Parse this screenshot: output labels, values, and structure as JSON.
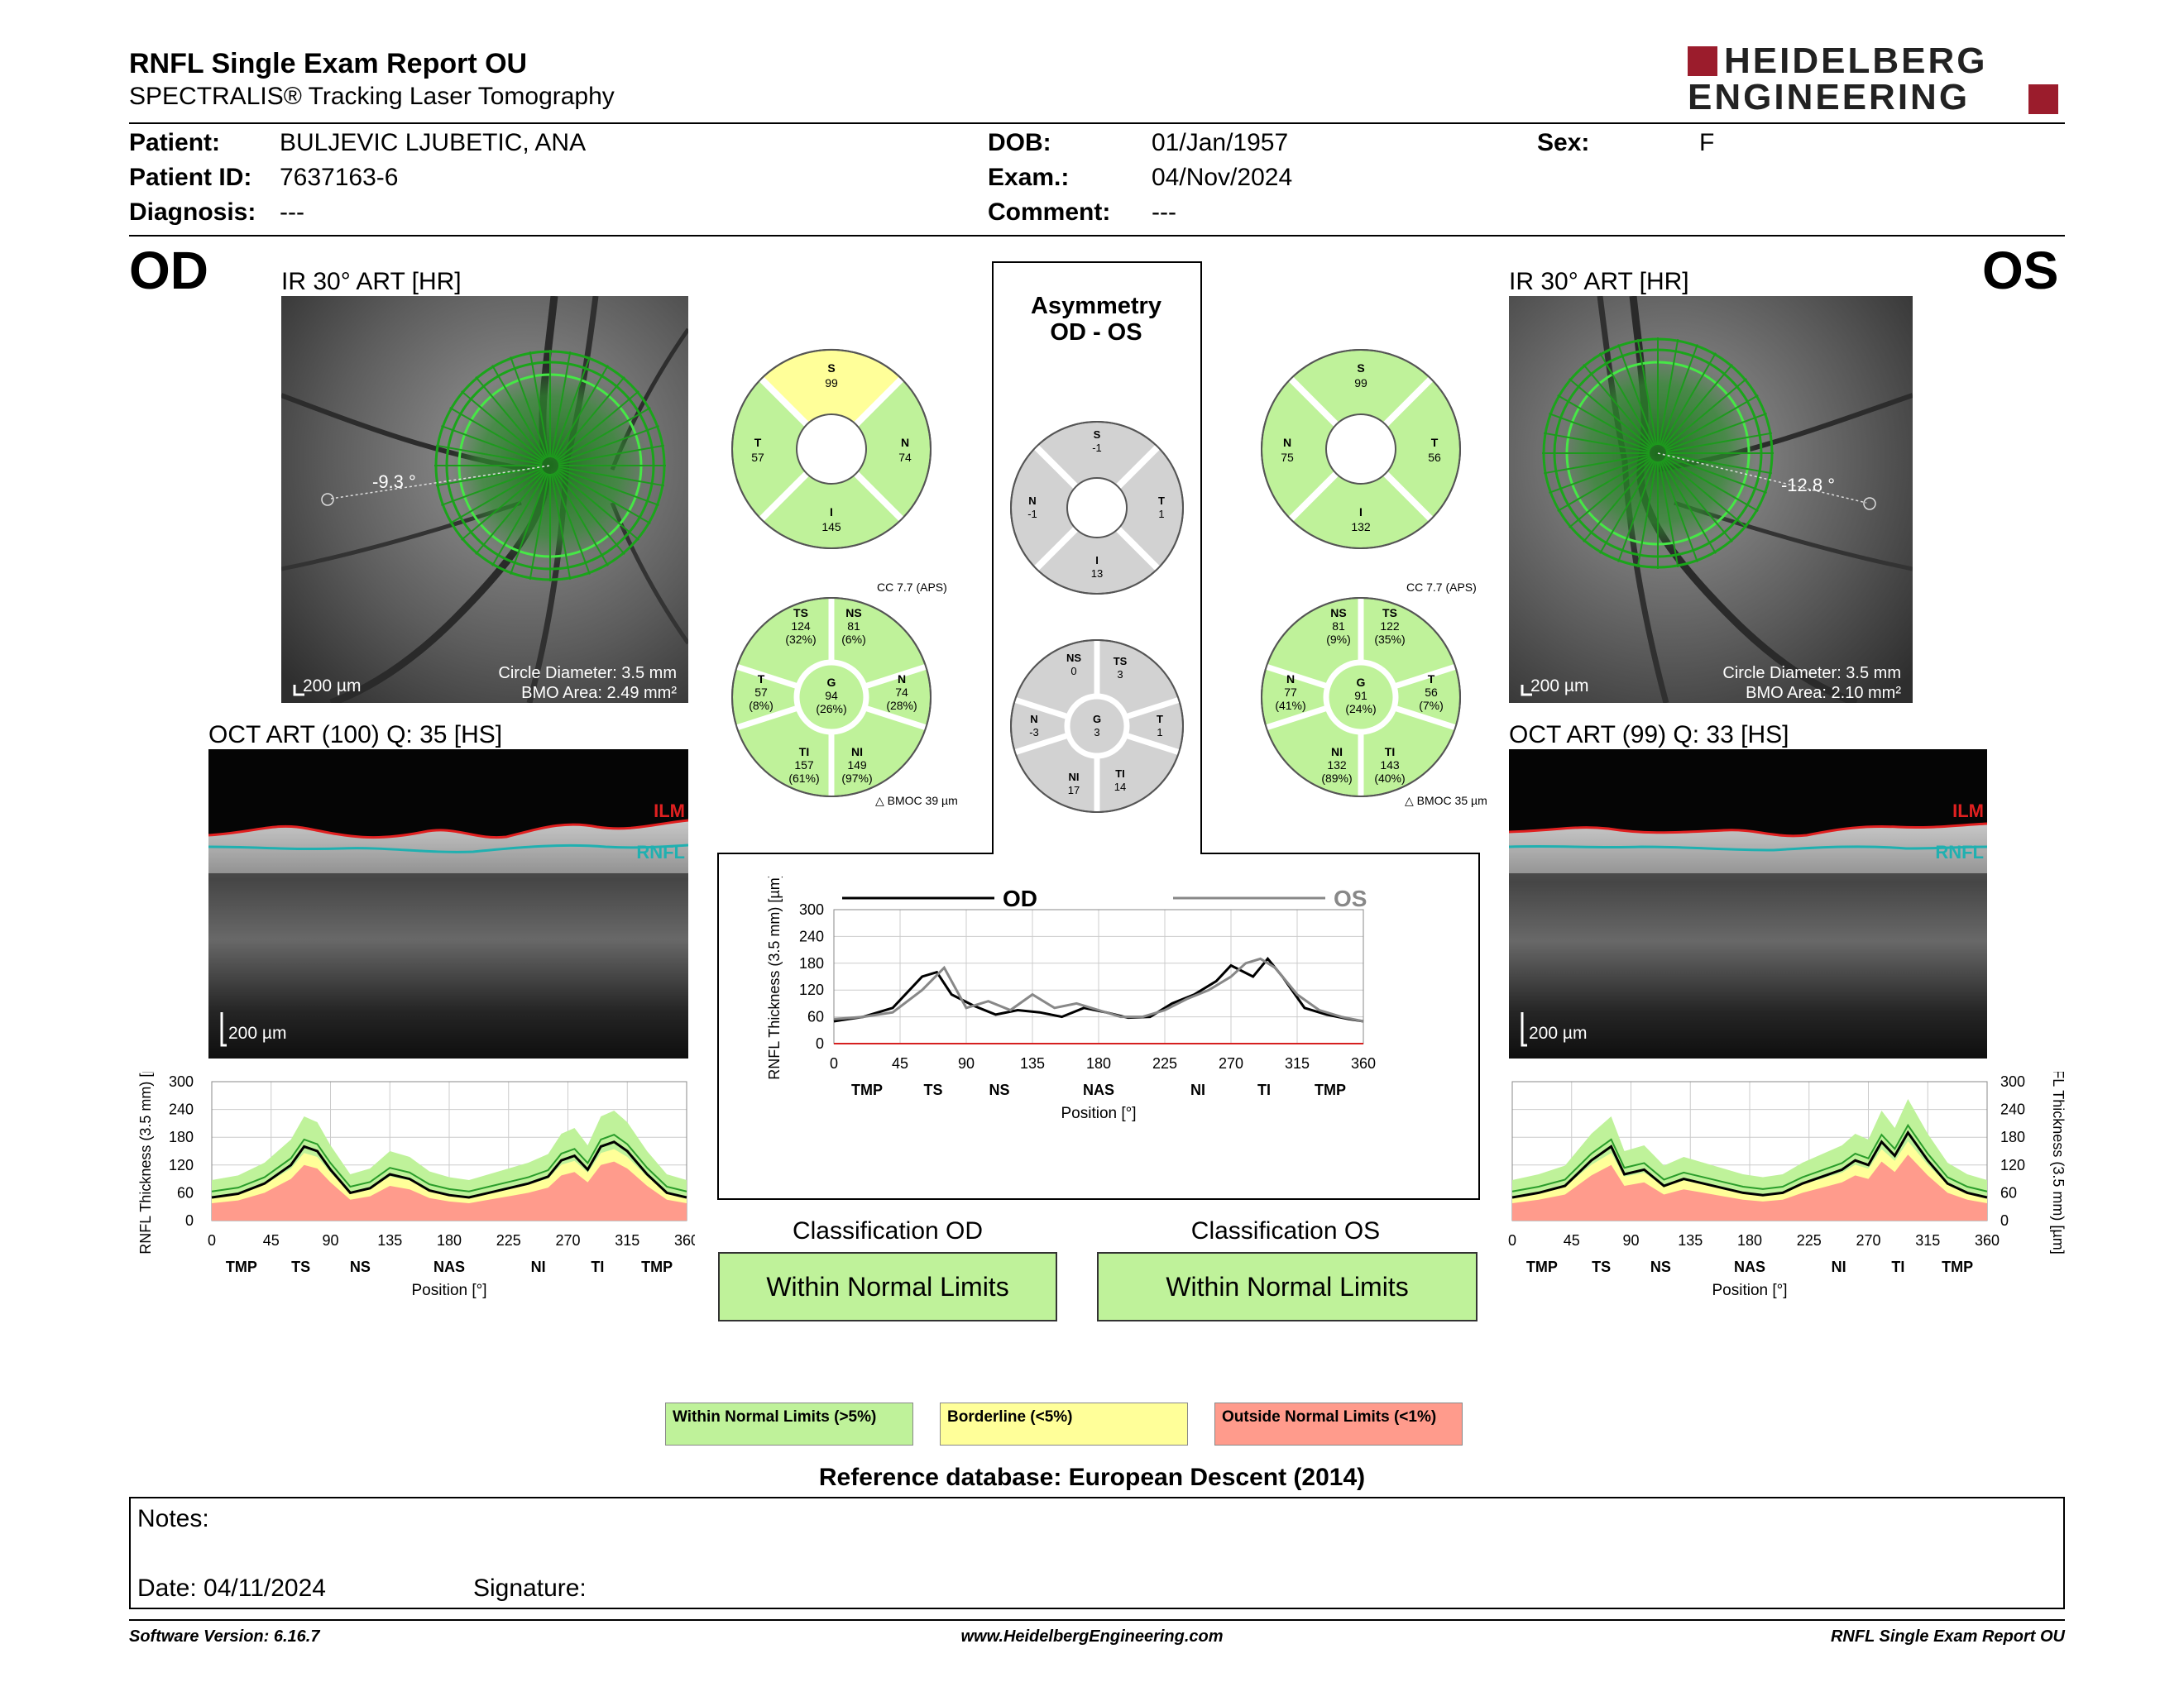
{
  "header": {
    "title": "RNFL Single Exam Report OU",
    "subtitle": "SPECTRALIS® Tracking Laser Tomography",
    "logo_top": "HEIDELBERG",
    "logo_bottom": "ENGINEERING"
  },
  "patient": {
    "patient_label": "Patient:",
    "patient_value": "BULJEVIC LJUBETIC, ANA",
    "id_label": "Patient ID:",
    "id_value": "7637163-6",
    "diagnosis_label": "Diagnosis:",
    "diagnosis_value": "---",
    "dob_label": "DOB:",
    "dob_value": "01/Jan/1957",
    "exam_label": "Exam.:",
    "exam_value": "04/Nov/2024",
    "comment_label": "Comment:",
    "comment_value": "---",
    "sex_label": "Sex:",
    "sex_value": "F"
  },
  "od": {
    "eye": "OD",
    "ir_caption": "IR 30° ART [HR]",
    "angle": "-9.3 °",
    "scale": "200 µm",
    "circle_diameter": "Circle Diameter: 3.5 mm",
    "bmo_area": "BMO Area: 2.49 mm²",
    "oct_caption": "OCT ART (100) Q: 35 [HS]",
    "oct_scale": "200 µm",
    "ilm": "ILM",
    "rnfl": "RNFL",
    "classification_title": "Classification OD",
    "classification": "Within Normal Limits",
    "quadrant": {
      "S": "99",
      "T": "57",
      "N": "74",
      "I": "145"
    },
    "cc": "CC 7.7 (APS)",
    "bmoc": "BMOC 39 µm",
    "sectors": {
      "TS": {
        "v": "124",
        "p": "(32%)"
      },
      "NS": {
        "v": "81",
        "p": "(6%)"
      },
      "T": {
        "v": "57",
        "p": "(8%)"
      },
      "G": {
        "v": "94",
        "p": "(26%)"
      },
      "N": {
        "v": "74",
        "p": "(28%)"
      },
      "TI": {
        "v": "157",
        "p": "(61%)"
      },
      "NI": {
        "v": "149",
        "p": "(97%)"
      }
    }
  },
  "os": {
    "eye": "OS",
    "ir_caption": "IR 30° ART [HR]",
    "angle": "-12.8 °",
    "scale": "200 µm",
    "circle_diameter": "Circle Diameter: 3.5 mm",
    "bmo_area": "BMO Area: 2.10 mm²",
    "oct_caption": "OCT ART (99) Q: 33 [HS]",
    "oct_scale": "200 µm",
    "ilm": "ILM",
    "rnfl": "RNFL",
    "classification_title": "Classification OS",
    "classification": "Within Normal Limits",
    "quadrant": {
      "S": "99",
      "T": "56",
      "N": "75",
      "I": "132"
    },
    "cc": "CC 7.7 (APS)",
    "bmoc": "BMOC 35 µm",
    "sectors": {
      "NS": {
        "v": "81",
        "p": "(9%)"
      },
      "TS": {
        "v": "122",
        "p": "(35%)"
      },
      "N": {
        "v": "77",
        "p": "(41%)"
      },
      "G": {
        "v": "91",
        "p": "(24%)"
      },
      "T": {
        "v": "56",
        "p": "(7%)"
      },
      "NI": {
        "v": "132",
        "p": "(89%)"
      },
      "TI": {
        "v": "143",
        "p": "(40%)"
      }
    }
  },
  "asymmetry": {
    "title1": "Asymmetry",
    "title2": "OD - OS",
    "quadrant": {
      "S": "-1",
      "N": "-1",
      "T": "1",
      "I": "13"
    },
    "sectors": {
      "NS": "0",
      "TS": "3",
      "N": "-3",
      "G": "3",
      "T": "1",
      "NI": "17",
      "TI": "14"
    }
  },
  "legend": {
    "green": "Within Normal Limits (>5%)",
    "yellow": "Borderline (<5%)",
    "red": "Outside Normal Limits (<1%)",
    "green_color": "#bff29a",
    "yellow_color": "#ffff99",
    "red_color": "#ff9b8c"
  },
  "reference": "Reference database: European Descent (2014)",
  "notes": {
    "notes_label": "Notes:",
    "date_label": "Date: 04/11/2024",
    "signature_label": "Signature:"
  },
  "footer": {
    "version": "Software Version: 6.16.7",
    "url": "www.HeidelbergEngineering.com",
    "report": "RNFL Single Exam Report OU"
  },
  "chart_data": [
    {
      "type": "line",
      "name": "OD profile",
      "ylabel": "RNFL Thickness (3.5 mm) [µm]",
      "xlabel": "Position [°]",
      "ylim": [
        0,
        300
      ],
      "xlim": [
        0,
        360
      ],
      "xticks": [
        "0",
        "45",
        "90",
        "135",
        "180",
        "225",
        "270",
        "315",
        "360"
      ],
      "yticks": [
        "0",
        "60",
        "120",
        "180",
        "240",
        "300"
      ],
      "region_labels": [
        "TMP",
        "TS",
        "NS",
        "NAS",
        "NI",
        "TI",
        "TMP"
      ],
      "x": [
        0,
        20,
        40,
        60,
        70,
        80,
        90,
        105,
        120,
        135,
        150,
        165,
        180,
        195,
        210,
        225,
        240,
        255,
        265,
        275,
        285,
        295,
        305,
        315,
        330,
        345,
        360
      ],
      "values": [
        50,
        58,
        80,
        120,
        160,
        150,
        110,
        60,
        70,
        100,
        90,
        65,
        55,
        50,
        60,
        70,
        80,
        95,
        130,
        140,
        110,
        160,
        170,
        150,
        100,
        60,
        50
      ]
    },
    {
      "type": "line",
      "name": "Asymmetry profile",
      "ylabel": "RNFL Thickness (3.5 mm) [µm]",
      "xlabel": "Position [°]",
      "ylim": [
        0,
        300
      ],
      "xlim": [
        0,
        360
      ],
      "xticks": [
        "0",
        "45",
        "90",
        "135",
        "180",
        "225",
        "270",
        "315",
        "360"
      ],
      "yticks": [
        "0",
        "60",
        "120",
        "180",
        "240",
        "300"
      ],
      "region_labels": [
        "TMP",
        "TS",
        "NS",
        "NAS",
        "NI",
        "TI",
        "TMP"
      ],
      "legend": [
        "OD",
        "OS"
      ],
      "series": [
        {
          "name": "OD",
          "color": "#000000",
          "x": [
            0,
            20,
            40,
            60,
            70,
            80,
            95,
            110,
            125,
            140,
            155,
            170,
            185,
            200,
            215,
            230,
            245,
            260,
            270,
            285,
            295,
            305,
            320,
            335,
            350,
            360
          ],
          "values": [
            50,
            60,
            80,
            150,
            160,
            110,
            85,
            65,
            75,
            70,
            60,
            80,
            70,
            58,
            60,
            90,
            110,
            140,
            175,
            150,
            190,
            150,
            80,
            65,
            55,
            50
          ]
        },
        {
          "name": "OS",
          "color": "#888888",
          "x": [
            0,
            20,
            40,
            60,
            75,
            90,
            105,
            120,
            135,
            150,
            165,
            180,
            195,
            210,
            225,
            240,
            255,
            270,
            280,
            290,
            300,
            315,
            330,
            345,
            360
          ],
          "values": [
            55,
            60,
            70,
            120,
            170,
            80,
            95,
            75,
            110,
            80,
            90,
            75,
            60,
            60,
            75,
            100,
            120,
            150,
            180,
            190,
            170,
            110,
            75,
            60,
            50
          ]
        }
      ]
    },
    {
      "type": "line",
      "name": "OS profile",
      "ylabel": "RNFL Thickness (3.5 mm) [µm]",
      "xlabel": "Position [°]",
      "ylim": [
        0,
        300
      ],
      "xlim": [
        0,
        360
      ],
      "xticks": [
        "0",
        "45",
        "90",
        "135",
        "180",
        "225",
        "270",
        "315",
        "360"
      ],
      "yticks": [
        "0",
        "60",
        "120",
        "180",
        "240",
        "300"
      ],
      "region_labels": [
        "TMP",
        "TS",
        "NS",
        "NAS",
        "NI",
        "TI",
        "TMP"
      ],
      "x": [
        0,
        20,
        40,
        60,
        75,
        85,
        100,
        115,
        130,
        145,
        160,
        175,
        190,
        205,
        220,
        235,
        250,
        260,
        270,
        280,
        290,
        300,
        315,
        330,
        345,
        360
      ],
      "values": [
        50,
        60,
        75,
        130,
        160,
        100,
        110,
        75,
        90,
        80,
        70,
        60,
        55,
        60,
        80,
        95,
        110,
        130,
        120,
        170,
        140,
        190,
        130,
        80,
        60,
        50
      ]
    }
  ]
}
